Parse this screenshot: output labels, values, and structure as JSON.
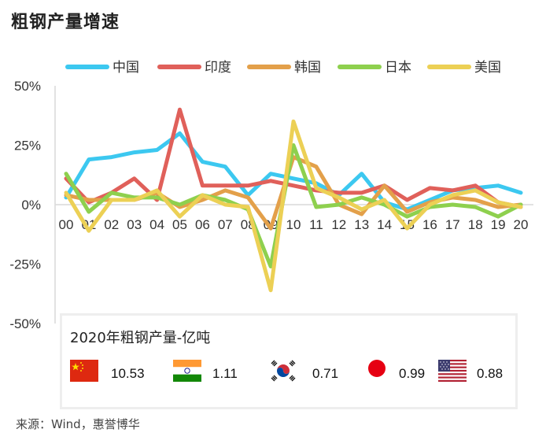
{
  "title": "粗钢产量增速",
  "source": "来源：Wind，惠誉博华",
  "chart_data": {
    "type": "line",
    "title": "粗钢产量增速",
    "xlabel": "",
    "ylabel": "",
    "x": [
      "00",
      "01",
      "02",
      "03",
      "04",
      "05",
      "06",
      "07",
      "08",
      "09",
      "10",
      "11",
      "12",
      "13",
      "14",
      "15",
      "16",
      "17",
      "18",
      "19",
      "20"
    ],
    "ylim": [
      -50,
      50
    ],
    "yticks": [
      50,
      25,
      0,
      -25,
      -50
    ],
    "ytick_labels": [
      "50%",
      "25%",
      "0%",
      "-25%",
      "-50%"
    ],
    "grid": false,
    "legend_position": "top",
    "series": [
      {
        "name": "中国",
        "color": "#3cc8f0",
        "values": [
          3,
          19,
          20,
          22,
          23,
          30,
          18,
          16,
          4,
          13,
          11,
          9,
          4,
          13,
          1,
          -2,
          2,
          6,
          7,
          8,
          5
        ]
      },
      {
        "name": "印度",
        "color": "#e0605a",
        "values": [
          11,
          1,
          5,
          11,
          2,
          40,
          8,
          8,
          8,
          10,
          8,
          6,
          5,
          5,
          8,
          2,
          7,
          6,
          8,
          1,
          -1
        ]
      },
      {
        "name": "韩国",
        "color": "#e3a04a",
        "values": [
          4,
          2,
          2,
          2,
          5,
          -1,
          2,
          6,
          3,
          -10,
          20,
          16,
          0,
          -4,
          8,
          -3,
          1,
          3,
          2,
          -1,
          0
        ]
      },
      {
        "name": "日本",
        "color": "#8ed04e",
        "values": [
          13,
          -3,
          5,
          3,
          3,
          0,
          4,
          2,
          -2,
          -26,
          25,
          -1,
          0,
          3,
          0,
          -5,
          -1,
          0,
          -1,
          -5,
          0
        ]
      },
      {
        "name": "美国",
        "color": "#ecd055",
        "values": [
          5,
          -11,
          2,
          2,
          6,
          -5,
          4,
          0,
          -1,
          -36,
          35,
          7,
          3,
          -2,
          2,
          -10,
          0,
          4,
          6,
          1,
          -1
        ]
      }
    ]
  },
  "inset": {
    "title": "2020年粗钢产量-亿吨",
    "items": [
      {
        "country": "中国",
        "flag": "china-flag",
        "value": "10.53"
      },
      {
        "country": "印度",
        "flag": "india-flag",
        "value": "1.11"
      },
      {
        "country": "韩国",
        "flag": "korea-flag",
        "value": "0.71"
      },
      {
        "country": "日本",
        "flag": "japan-flag",
        "value": "0.99"
      },
      {
        "country": "美国",
        "flag": "usa-flag",
        "value": "0.88"
      }
    ]
  }
}
